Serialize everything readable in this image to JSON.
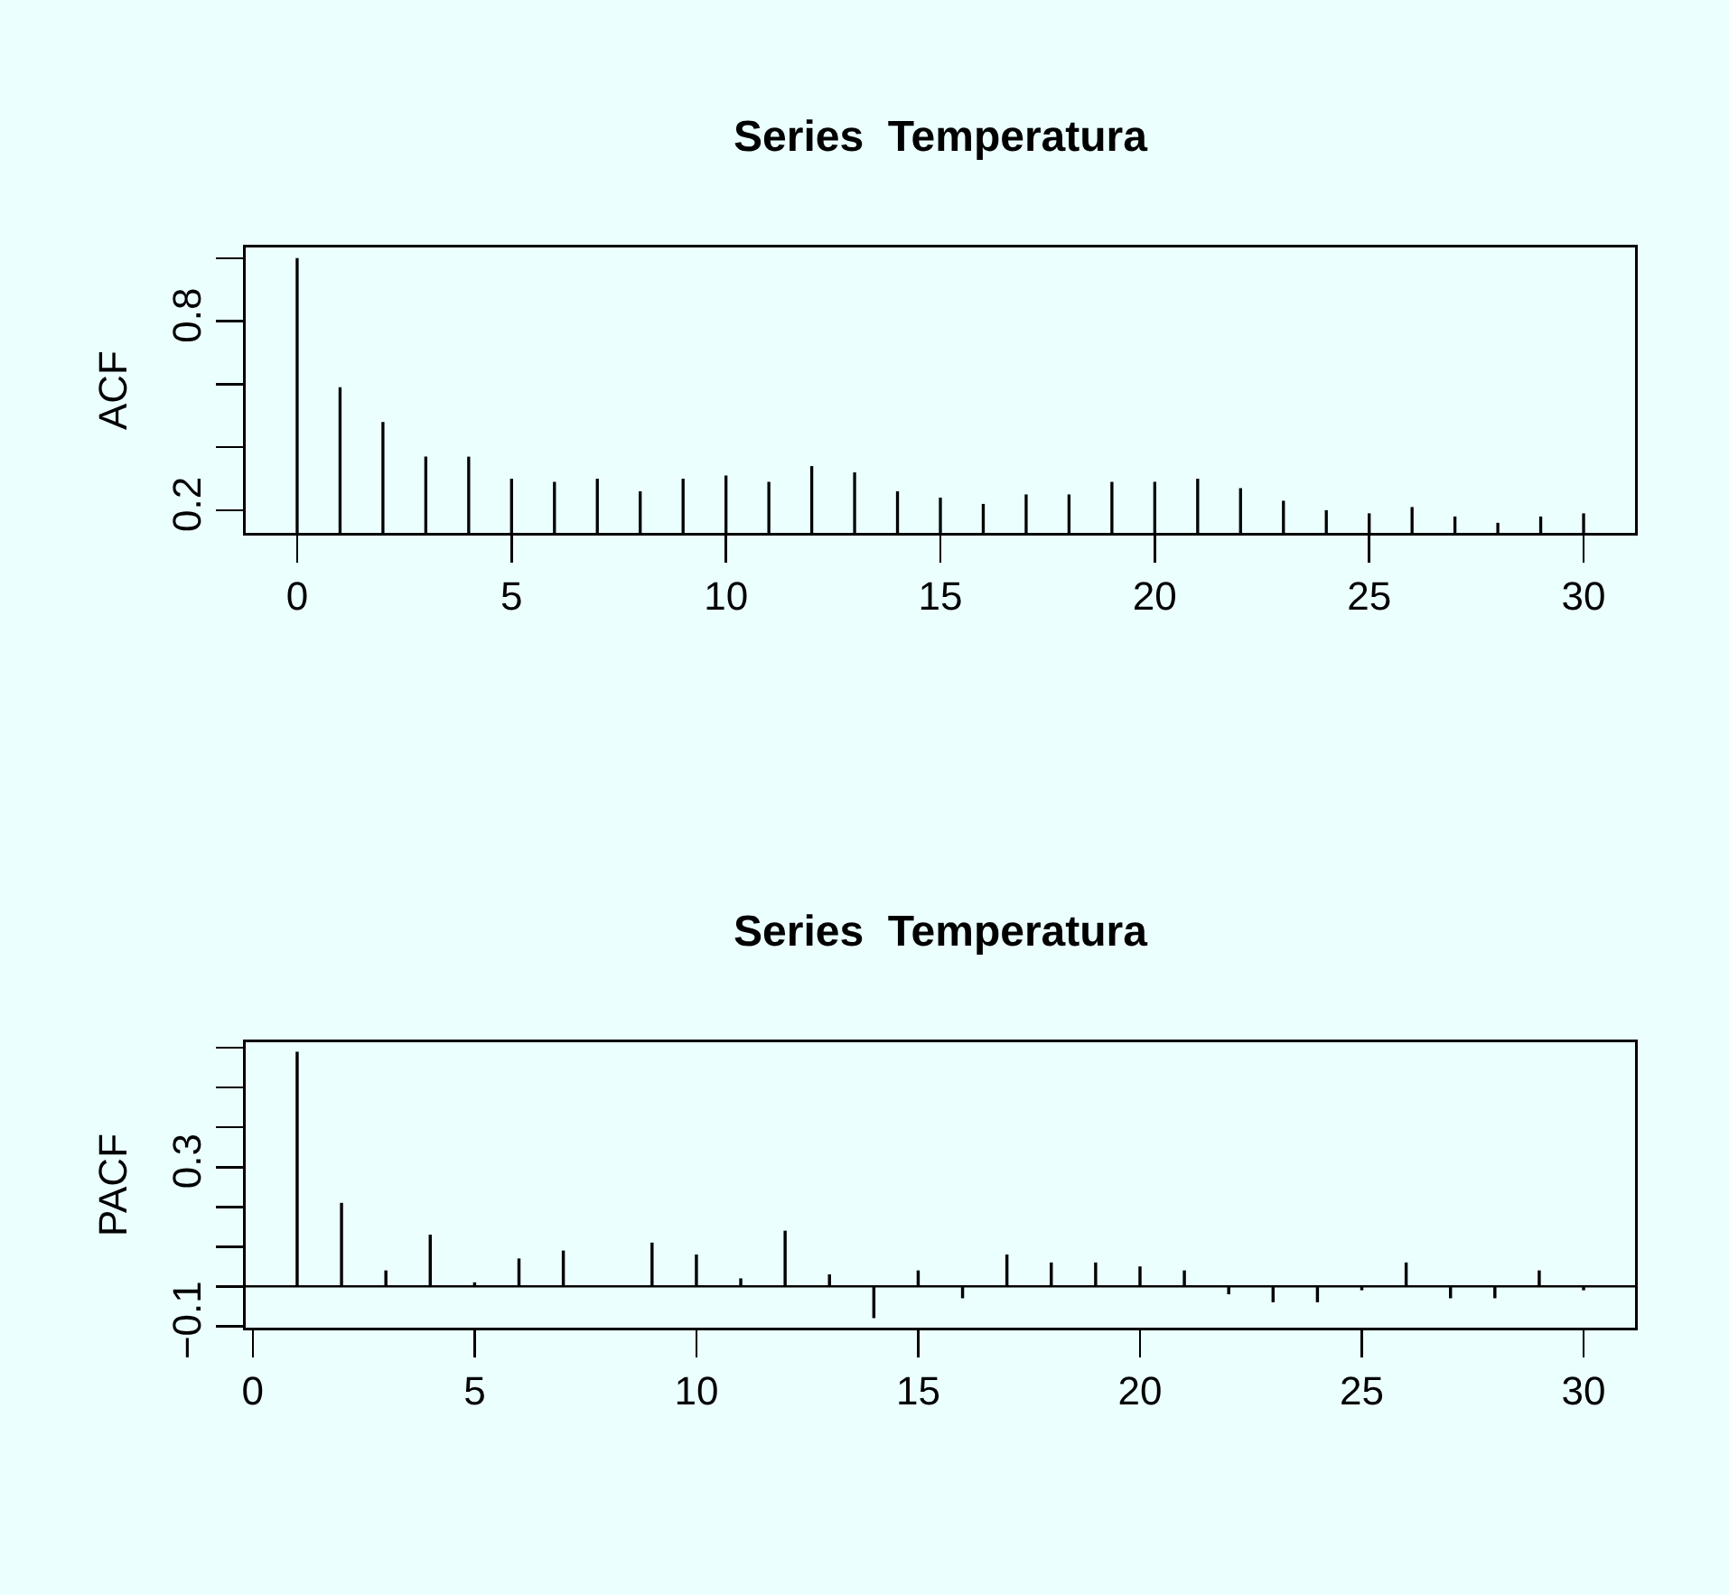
{
  "chart_data": [
    {
      "type": "bar",
      "title": "Series  Temperatura",
      "ylabel": "ACF",
      "x": [
        0,
        1,
        2,
        3,
        4,
        5,
        6,
        7,
        8,
        9,
        10,
        11,
        12,
        13,
        14,
        15,
        16,
        17,
        18,
        19,
        20,
        21,
        22,
        23,
        24,
        25,
        26,
        27,
        28,
        29,
        30
      ],
      "series": [
        {
          "color": "#000000",
          "values": [
            1.0,
            0.59,
            0.48,
            0.37,
            0.37,
            0.3,
            0.29,
            0.3,
            0.26,
            0.3,
            0.31,
            0.29,
            0.34,
            0.32,
            0.26,
            0.24,
            0.22,
            0.25,
            0.25,
            0.29,
            0.29,
            0.3,
            0.27,
            0.23,
            0.2,
            0.19,
            0.21,
            0.18,
            0.16,
            0.18,
            0.19
          ]
        }
      ],
      "xlim": [
        -1.2,
        31.2
      ],
      "xticks": [
        0,
        5,
        10,
        15,
        20,
        25,
        30
      ],
      "ylim": [
        0.128,
        1.034
      ],
      "yticks": [
        0.2,
        {
          "value": 0.4,
          "label": null
        },
        {
          "value": 0.6,
          "label": null
        },
        0.8,
        {
          "value": 1.0,
          "label": null
        }
      ],
      "grid": false
    },
    {
      "type": "bar",
      "title": "Series  Temperatura",
      "ylabel": "PACF",
      "x": [
        1,
        2,
        3,
        4,
        5,
        6,
        7,
        8,
        9,
        10,
        11,
        12,
        13,
        14,
        15,
        16,
        17,
        18,
        19,
        20,
        21,
        22,
        23,
        24,
        25,
        26,
        27,
        28,
        29,
        30
      ],
      "series": [
        {
          "color": "#000000",
          "values": [
            0.59,
            0.21,
            0.04,
            0.13,
            0.01,
            0.07,
            0.09,
            0.0,
            0.11,
            0.08,
            0.02,
            0.14,
            0.03,
            -0.08,
            0.04,
            -0.03,
            0.08,
            0.06,
            0.06,
            0.05,
            0.04,
            -0.02,
            -0.04,
            -0.04,
            -0.01,
            0.06,
            -0.03,
            -0.03,
            0.04,
            -0.01
          ]
        }
      ],
      "xlim": [
        -0.16,
        31.16
      ],
      "xticks": [
        0,
        5,
        10,
        15,
        20,
        25,
        30
      ],
      "ylim": [
        -0.104,
        0.614
      ],
      "yticks": [
        {
          "value": -0.1,
          "label": "−0.1"
        },
        {
          "value": 0.0,
          "label": null
        },
        {
          "value": 0.1,
          "label": null
        },
        {
          "value": 0.2,
          "label": null
        },
        0.3,
        {
          "value": 0.4,
          "label": null
        },
        {
          "value": 0.5,
          "label": null
        },
        {
          "value": 0.6,
          "label": null
        }
      ],
      "ref_lines": [
        {
          "axis": "y",
          "value": 0,
          "color": "#000000"
        }
      ],
      "grid": false
    }
  ]
}
